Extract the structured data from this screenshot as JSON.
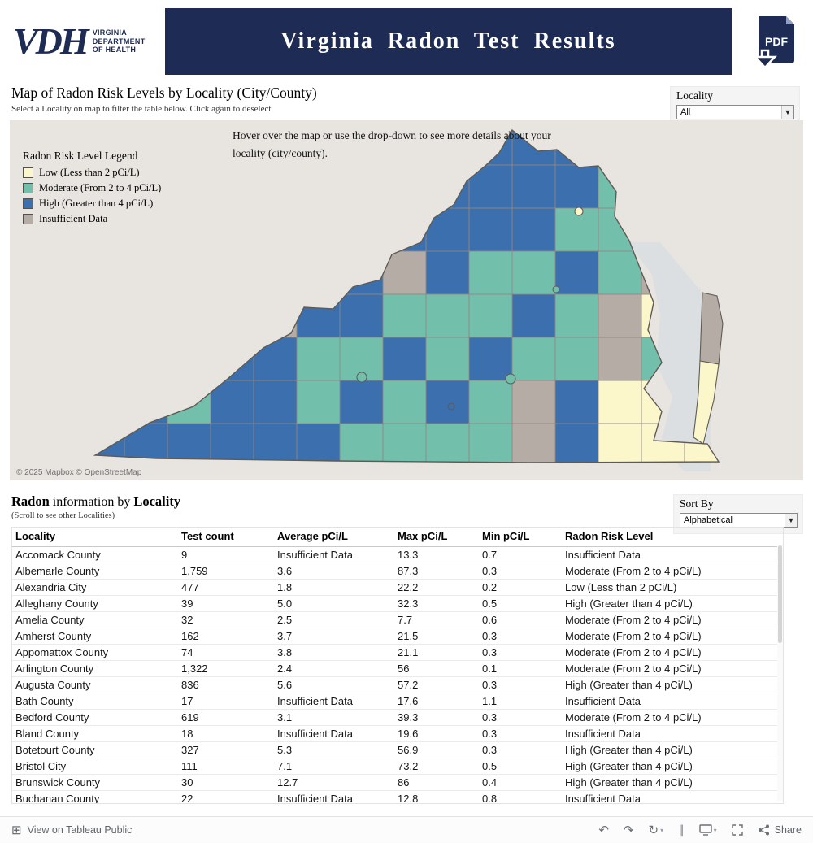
{
  "header": {
    "title": "Virginia  Radon  Test  Results",
    "logo_acronym": "VDH",
    "logo_line1": "VIRGINIA",
    "logo_line2": "DEPARTMENT",
    "logo_line3": "OF HEALTH",
    "pdf_label": "PDF"
  },
  "map_section": {
    "title": "Map of Radon Risk Levels by Locality (City/County)",
    "subtitle": "Select a Locality on map to filter the table below. Click again to deselect.",
    "locality_filter": {
      "label": "Locality",
      "value": "All"
    },
    "hover_hint": "Hover over the map or use the drop-down to see more details about your locality (city/county).",
    "legend_title": "Radon Risk Level Legend",
    "legend_items": [
      {
        "label": "Low (Less than 2 pCi/L)",
        "color_key": "low"
      },
      {
        "label": "Moderate (From 2 to 4 pCi/L)",
        "color_key": "moderate"
      },
      {
        "label": "High (Greater than 4 pCi/L)",
        "color_key": "high"
      },
      {
        "label": "Insufficient Data",
        "color_key": "insufficient"
      }
    ],
    "attribution": "© 2025 Mapbox © OpenStreetMap"
  },
  "table_section": {
    "title_bold1": "Radon",
    "title_mid": " information by ",
    "title_bold2": "Locality",
    "subtitle": "(Scroll to see other Localities)",
    "sort_filter": {
      "label": "Sort By",
      "value": "Alphabetical"
    },
    "columns": [
      "Locality",
      "Test count",
      "Average pCi/L",
      "Max pCi/L",
      "Min pCi/L",
      "Radon Risk Level"
    ],
    "rows": [
      {
        "locality": "Accomack County",
        "tests": "9",
        "avg": "Insufficient Data",
        "max": "13.3",
        "min": "0.7",
        "risk": "Insufficient Data"
      },
      {
        "locality": "Albemarle County",
        "tests": "1,759",
        "avg": "3.6",
        "max": "87.3",
        "min": "0.3",
        "risk": "Moderate (From 2 to 4 pCi/L)"
      },
      {
        "locality": "Alexandria City",
        "tests": "477",
        "avg": "1.8",
        "max": "22.2",
        "min": "0.2",
        "risk": "Low (Less than 2 pCi/L)"
      },
      {
        "locality": "Alleghany County",
        "tests": "39",
        "avg": "5.0",
        "max": "32.3",
        "min": "0.5",
        "risk": "High (Greater than 4 pCi/L)"
      },
      {
        "locality": "Amelia County",
        "tests": "32",
        "avg": "2.5",
        "max": "7.7",
        "min": "0.6",
        "risk": "Moderate (From 2 to 4 pCi/L)"
      },
      {
        "locality": "Amherst County",
        "tests": "162",
        "avg": "3.7",
        "max": "21.5",
        "min": "0.3",
        "risk": "Moderate (From 2 to 4 pCi/L)"
      },
      {
        "locality": "Appomattox County",
        "tests": "74",
        "avg": "3.8",
        "max": "21.1",
        "min": "0.3",
        "risk": "Moderate (From 2 to 4 pCi/L)"
      },
      {
        "locality": "Arlington County",
        "tests": "1,322",
        "avg": "2.4",
        "max": "56",
        "min": "0.1",
        "risk": "Moderate (From 2 to 4 pCi/L)"
      },
      {
        "locality": "Augusta County",
        "tests": "836",
        "avg": "5.6",
        "max": "57.2",
        "min": "0.3",
        "risk": "High (Greater than 4 pCi/L)"
      },
      {
        "locality": "Bath County",
        "tests": "17",
        "avg": "Insufficient Data",
        "max": "17.6",
        "min": "1.1",
        "risk": "Insufficient Data"
      },
      {
        "locality": "Bedford County",
        "tests": "619",
        "avg": "3.1",
        "max": "39.3",
        "min": "0.3",
        "risk": "Moderate (From 2 to 4 pCi/L)"
      },
      {
        "locality": "Bland County",
        "tests": "18",
        "avg": "Insufficient Data",
        "max": "19.6",
        "min": "0.3",
        "risk": "Insufficient Data"
      },
      {
        "locality": "Botetourt County",
        "tests": "327",
        "avg": "5.3",
        "max": "56.9",
        "min": "0.3",
        "risk": "High (Greater than 4 pCi/L)"
      },
      {
        "locality": "Bristol City",
        "tests": "111",
        "avg": "7.1",
        "max": "73.2",
        "min": "0.5",
        "risk": "High (Greater than 4 pCi/L)"
      },
      {
        "locality": "Brunswick County",
        "tests": "30",
        "avg": "12.7",
        "max": "86",
        "min": "0.4",
        "risk": "High (Greater than 4 pCi/L)"
      },
      {
        "locality": "Buchanan County",
        "tests": "22",
        "avg": "Insufficient Data",
        "max": "12.8",
        "min": "0.8",
        "risk": "Insufficient Data"
      }
    ]
  },
  "footer": {
    "view_label": "View on Tableau Public",
    "share_label": "Share"
  },
  "colors": {
    "navy": "#1e2c55",
    "low": "#fbf7cb",
    "moderate": "#72bfab",
    "high": "#3c6fae",
    "insufficient": "#b5ada5",
    "map_bg": "#e8e5e0",
    "water": "#dbdfe2",
    "county_border": "#8f8880",
    "state_border": "#5f5a54"
  }
}
